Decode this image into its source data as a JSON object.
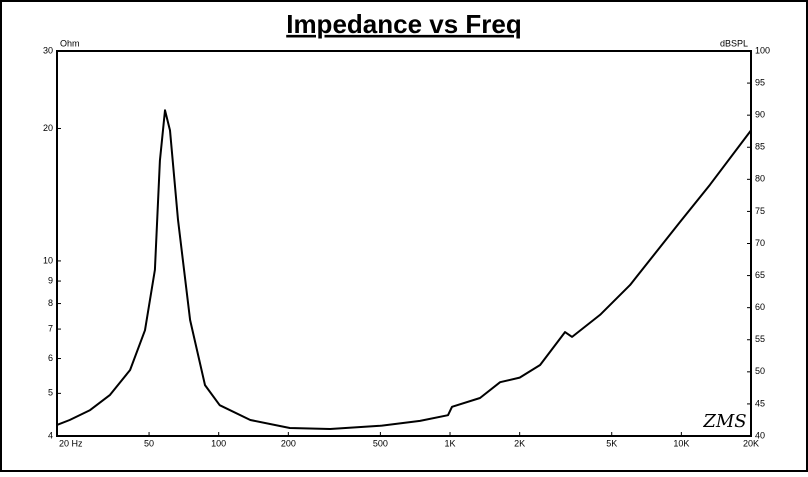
{
  "chart_data": {
    "type": "line",
    "title": "Impedance vs Freq",
    "y_label": "Ohm",
    "y2_label": "dBSPL",
    "annotation": "ZMS",
    "x_scale": "log",
    "y_scale": "log",
    "color": "#000000",
    "grid": false,
    "xlim": [
      20,
      20000
    ],
    "ylim": [
      4,
      30
    ],
    "y2lim": [
      40,
      100
    ],
    "xticks": [
      {
        "value": 20,
        "label": "20  Hz"
      },
      50,
      100,
      200,
      500,
      {
        "value": 1000,
        "label": "1K"
      },
      {
        "value": 2000,
        "label": "2K"
      },
      {
        "value": 5000,
        "label": "5K"
      },
      {
        "value": 10000,
        "label": "10K"
      },
      {
        "value": 20000,
        "label": "20K"
      }
    ],
    "yticks": [
      30,
      20,
      10,
      9,
      8,
      7,
      6,
      5,
      4
    ],
    "y2ticks": [
      100,
      95,
      90,
      85,
      80,
      75,
      70,
      65,
      60,
      55,
      50,
      45,
      40
    ],
    "x": [
      20,
      22.7,
      27.8,
      33.9,
      41.4,
      48,
      53,
      55.7,
      58.6,
      61.6,
      66.7,
      75.2,
      87.3,
      101,
      137,
      203,
      303,
      499,
      742,
      980,
      1020,
      1348,
      1646,
      2000,
      2450,
      3140,
      3370,
      4450,
      6000,
      9860,
      13300,
      20000
    ],
    "values": [
      4.24,
      4.35,
      4.58,
      4.96,
      5.65,
      6.96,
      9.54,
      16.9,
      22.0,
      19.8,
      12.4,
      7.34,
      5.22,
      4.7,
      4.35,
      4.17,
      4.15,
      4.22,
      4.33,
      4.46,
      4.66,
      4.88,
      5.3,
      5.43,
      5.8,
      6.89,
      6.72,
      7.54,
      8.81,
      12.25,
      14.9,
      19.8
    ]
  }
}
